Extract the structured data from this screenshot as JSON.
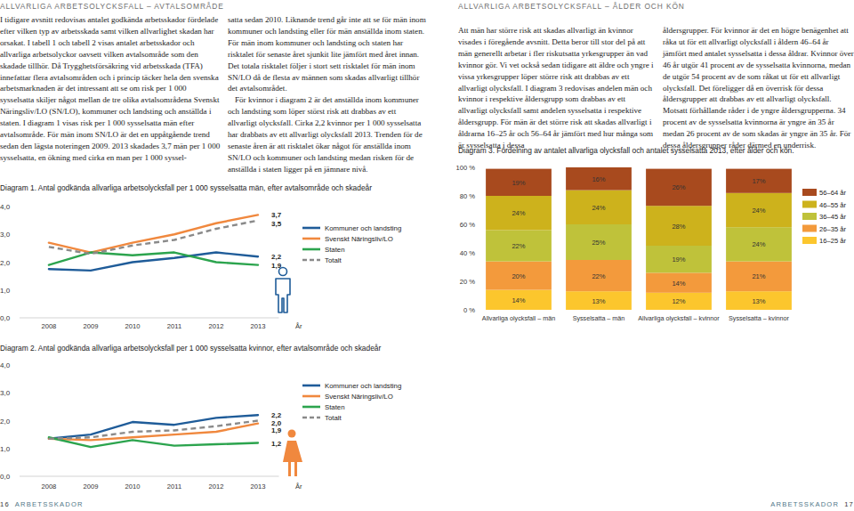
{
  "header": {
    "left": "ALLVARLIGA ARBETSOLYCKSFALL – AVTALSOMRÅDE",
    "right": "ALLVARLIGA ARBETSOLYCKSFALL – ÅLDER OCH KÖN"
  },
  "columns": [
    [
      "I tidigare avsnitt redovisas antalet godkända arbetsskador fördelade efter vilken typ av arbetsskada samt vilken allvarlighet skadan har orsakat. I tabell 1 och tabell 2 visas antalet arbetsskador och allvarliga arbetsolyckor oavsett vilken avtalsområde som den skadade tillhör. Då Trygghetsförsäkring vid arbetsskada (TFA) innefattar flera avtalsområden och i princip täcker hela den svenska arbetsmarknaden är det intressant att se om risk per 1 000 sysselsatta skiljer något mellan de tre olika avtalsområdena Svenskt Näringsliv/LO (SN/LO), kommuner och landsting och anställda i staten. I diagram 1 visas risk per 1 000 sysselsatta män efter avtalsområde. För män inom SN/LO är det en uppåtgående trend sedan den lägsta noteringen 2009. 2013 skadades 3,7 män per 1 000 sysselsatta, en ökning med cirka en man per 1 000 syssel-"
    ],
    [
      "satta sedan 2010. Liknande trend går inte att se för män inom kommuner och landsting eller för män anställda inom staten. För män inom kommuner och landsting och staten har risktalet för senaste året sjunkit lite jämfört med året innan. Det totala risktalet följer i stort sett risktalet för män inom SN/LO då de flesta av männen som skadas allvarligt tillhör det avtalsområdet.",
      "För kvinnor i diagram 2 är det anställda inom kommuner och landsting som löper störst risk att drabbas av ett allvarligt olycksfall. Cirka 2,2 kvinnor per 1 000 sysselsatta har drabbats av ett allvarligt olycksfall 2013. Trenden för de senaste åren är att risktalet ökar något för anställda inom SN/LO och kommuner och landsting medan risken för de anställda i staten ligger på en jämnare nivå."
    ],
    [
      "Att män har större risk att skadas allvarligt än kvinnor visades i föregående avsnitt. Detta beror till stor del på att män generellt arbetar i fler riskutsatta yrkesgrupper än vad kvinnor gör. Vi vet också sedan tidigare att äldre och yngre i vissa yrkesgrupper löper större risk att drabbas av ett allvarligt olycksfall. I diagram 3 redovisas andelen män och kvinnor i respektive åldersgrupp som drabbas av ett allvarligt olycksfall samt andelen sysselsatta i respektive åldersgrupp. För män är det större risk att skadas allvarligt i åldrarna 16–25 år och 56–64 år jämfört med hur många som är sysselsatta i dessa"
    ],
    [
      "åldersgrupper. För kvinnor är det en högre benägenhet att råka ut för ett allvarligt olycksfall i åldern 46–64 år jämfört med antalet sysselsatta i dessa åldrar. Kvinnor över 46 år utgör 41 procent av de sysselsatta kvinnorna, medan de utgör 54 procent av de som råkat ut för ett allvarligt olycksfall. Det föreligger då en överrisk för dessa åldersgrupper att drabbas av ett allvarligt olycksfall. Motsatt förhållande råder i de yngre åldersgrupperna. 34 procent av de sysselsatta kvinnorna är yngre än 35 år medan 26 procent av de som skadas är yngre än 35 år. För dessa åldersgrupper råder därmed en underrisk."
    ]
  ],
  "chart_data": [
    {
      "type": "line",
      "title": "Diagram 1. Antal godkända allvarliga arbetsolycksfall per 1 000 sysselsatta män, efter avtalsområde och skadeår",
      "x_label": "År",
      "x": [
        2008,
        2009,
        2010,
        2011,
        2012,
        2013
      ],
      "xlim": [
        2007.3,
        2013.5
      ],
      "xticks": [
        2008,
        2009,
        2010,
        2011,
        2012,
        2013
      ],
      "ylim": [
        0,
        4
      ],
      "yticks": [
        {
          "value": 0,
          "label": "0,0"
        },
        {
          "value": 1,
          "label": "1,0"
        },
        {
          "value": 2,
          "label": "2,0"
        },
        {
          "value": 3,
          "label": "3,0"
        },
        {
          "value": 4,
          "label": "4,0"
        }
      ],
      "grid": false,
      "legend": "right",
      "data_labels": true,
      "series": [
        {
          "name": "Kommuner och landsting",
          "color": "#1f5c99",
          "line_style": "solid",
          "values": [
            1.75,
            1.7,
            2.0,
            2.15,
            2.35,
            2.2
          ],
          "value_labels": [
            null,
            null,
            null,
            null,
            null,
            "2,2"
          ]
        },
        {
          "name": "Svenskt Näringsliv/LO",
          "color": "#f0883e",
          "line_style": "solid",
          "values": [
            2.7,
            2.35,
            2.7,
            3.0,
            3.4,
            3.7
          ],
          "value_labels": [
            null,
            null,
            null,
            null,
            null,
            "3,7"
          ]
        },
        {
          "name": "Staten",
          "color": "#2ca44e",
          "line_style": "solid",
          "values": [
            1.9,
            2.35,
            2.25,
            2.35,
            2.0,
            1.9
          ],
          "value_labels": [
            null,
            null,
            null,
            null,
            null,
            "1,9"
          ]
        },
        {
          "name": "Totalt",
          "color": "#8a8a8a",
          "line_style": "dashed",
          "values": [
            2.55,
            2.3,
            2.6,
            2.8,
            3.2,
            3.5
          ],
          "value_labels": [
            null,
            null,
            null,
            null,
            null,
            "3,5"
          ]
        }
      ]
    },
    {
      "type": "line",
      "title": "Diagram 2. Antal godkända allvarliga arbetsolycksfall per 1 000 sysselsatta kvinnor, efter avtalsområde och skadeår",
      "x_label": "År",
      "x": [
        2008,
        2009,
        2010,
        2011,
        2012,
        2013
      ],
      "xlim": [
        2007.3,
        2013.5
      ],
      "xticks": [
        2008,
        2009,
        2010,
        2011,
        2012,
        2013
      ],
      "ylim": [
        0,
        4
      ],
      "yticks": [
        {
          "value": 0,
          "label": "0,0"
        },
        {
          "value": 1,
          "label": "1,0"
        },
        {
          "value": 2,
          "label": "2,0"
        },
        {
          "value": 3,
          "label": "3,0"
        },
        {
          "value": 4,
          "label": "4,0"
        }
      ],
      "grid": false,
      "legend": "right",
      "data_labels": true,
      "series": [
        {
          "name": "Kommuner och landsting",
          "color": "#1f5c99",
          "line_style": "solid",
          "values": [
            1.35,
            1.5,
            1.95,
            1.85,
            2.1,
            2.2
          ],
          "value_labels": [
            null,
            null,
            null,
            null,
            null,
            "2,2"
          ]
        },
        {
          "name": "Svenskt Näringsliv/LO",
          "color": "#f0883e",
          "line_style": "solid",
          "values": [
            1.35,
            1.3,
            1.4,
            1.5,
            1.6,
            1.9
          ],
          "value_labels": [
            null,
            null,
            null,
            null,
            null,
            "1,9"
          ]
        },
        {
          "name": "Staten",
          "color": "#2ca44e",
          "line_style": "solid",
          "values": [
            1.4,
            1.05,
            1.3,
            1.1,
            1.15,
            1.2
          ],
          "value_labels": [
            null,
            null,
            null,
            null,
            null,
            "1,2"
          ]
        },
        {
          "name": "Totalt",
          "color": "#8a8a8a",
          "line_style": "dashed",
          "values": [
            1.35,
            1.4,
            1.6,
            1.65,
            1.8,
            2.0
          ],
          "value_labels": [
            null,
            null,
            null,
            null,
            null,
            "2,0"
          ]
        }
      ]
    },
    {
      "type": "bar",
      "stacked": true,
      "title": "Diagram 3. Fördelning av antalet allvarliga olycksfall och antalet sysselsatta 2013, efter ålder och kön.",
      "categories": [
        "Allvarliga olycksfall – män",
        "Sysselsatta – män",
        "Allvarliga olycksfall – kvinnor",
        "Sysselsatta – kvinnor"
      ],
      "ylim": [
        0,
        100
      ],
      "yticks": [
        {
          "value": 0,
          "label": "0 %"
        },
        {
          "value": 20,
          "label": "20 %"
        },
        {
          "value": 40,
          "label": "40 %"
        },
        {
          "value": 60,
          "label": "60 %"
        },
        {
          "value": 80,
          "label": "80 %"
        },
        {
          "value": 100,
          "label": "100 %"
        }
      ],
      "grid": false,
      "legend": "right",
      "data_labels": true,
      "series": [
        {
          "name": "16–25 år",
          "color": "#fcc62d",
          "values": [
            14,
            13,
            12,
            13
          ],
          "value_labels": [
            "14%",
            "13%",
            "12%",
            "13%"
          ]
        },
        {
          "name": "26–35 år",
          "color": "#f39a3c",
          "values": [
            20,
            22,
            14,
            21
          ],
          "value_labels": [
            "20%",
            "22%",
            "14%",
            "21%"
          ]
        },
        {
          "name": "36–45 år",
          "color": "#bfc23a",
          "values": [
            22,
            25,
            19,
            24
          ],
          "value_labels": [
            "22%",
            "25%",
            "19%",
            "24%"
          ]
        },
        {
          "name": "46–55 år",
          "color": "#cdb21c",
          "values": [
            24,
            24,
            28,
            24
          ],
          "value_labels": [
            "24%",
            "24%",
            "28%",
            "24%"
          ]
        },
        {
          "name": "56–64 år",
          "color": "#a84a1e",
          "values": [
            19,
            16,
            26,
            17
          ],
          "value_labels": [
            "19%",
            "16%",
            "26%",
            "17%"
          ]
        }
      ]
    }
  ],
  "footer": {
    "left_number": 16,
    "left_text": "ARBETSSKADOR",
    "right_text": "ARBETSSKADOR",
    "right_number": 17
  }
}
